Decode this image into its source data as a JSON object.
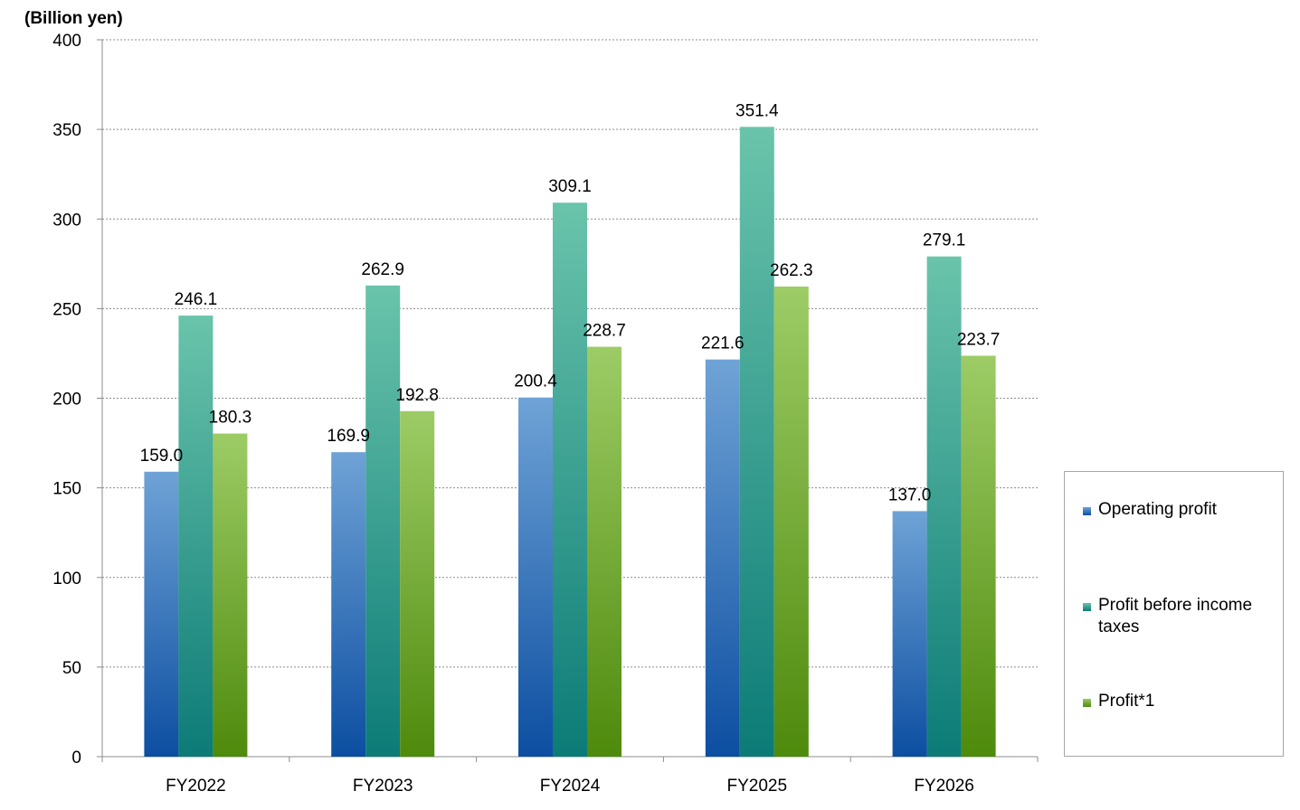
{
  "chart_data": {
    "type": "bar",
    "unit_label": "(Billion yen)",
    "categories": [
      "FY2022",
      "FY2023",
      "FY2024",
      "FY2025",
      "FY2026"
    ],
    "series": [
      {
        "name": "Operating profit",
        "values": [
          159.0,
          169.9,
          200.4,
          221.6,
          137.0
        ],
        "labels": [
          "159.0",
          "169.9",
          "200.4",
          "221.6",
          "137.0"
        ],
        "color_top": "#6fa3d6",
        "color_bottom": "#0c4ea1"
      },
      {
        "name": "Profit before income taxes",
        "values": [
          246.1,
          262.9,
          309.1,
          351.4,
          279.1
        ],
        "labels": [
          "246.1",
          "262.9",
          "309.1",
          "351.4",
          "279.1"
        ],
        "color_top": "#6ac4ab",
        "color_bottom": "#0c7b77"
      },
      {
        "name": "Profit*1",
        "values": [
          180.3,
          192.8,
          228.7,
          262.3,
          223.7
        ],
        "labels": [
          "180.3",
          "192.8",
          "228.7",
          "262.3",
          "223.7"
        ],
        "color_top": "#9dcc66",
        "color_bottom": "#4e8a0c"
      }
    ],
    "yticks": [
      "0",
      "50",
      "100",
      "150",
      "200",
      "250",
      "300",
      "350",
      "400"
    ],
    "ylim": [
      0,
      400
    ],
    "grid": true,
    "legend_position": "right"
  }
}
